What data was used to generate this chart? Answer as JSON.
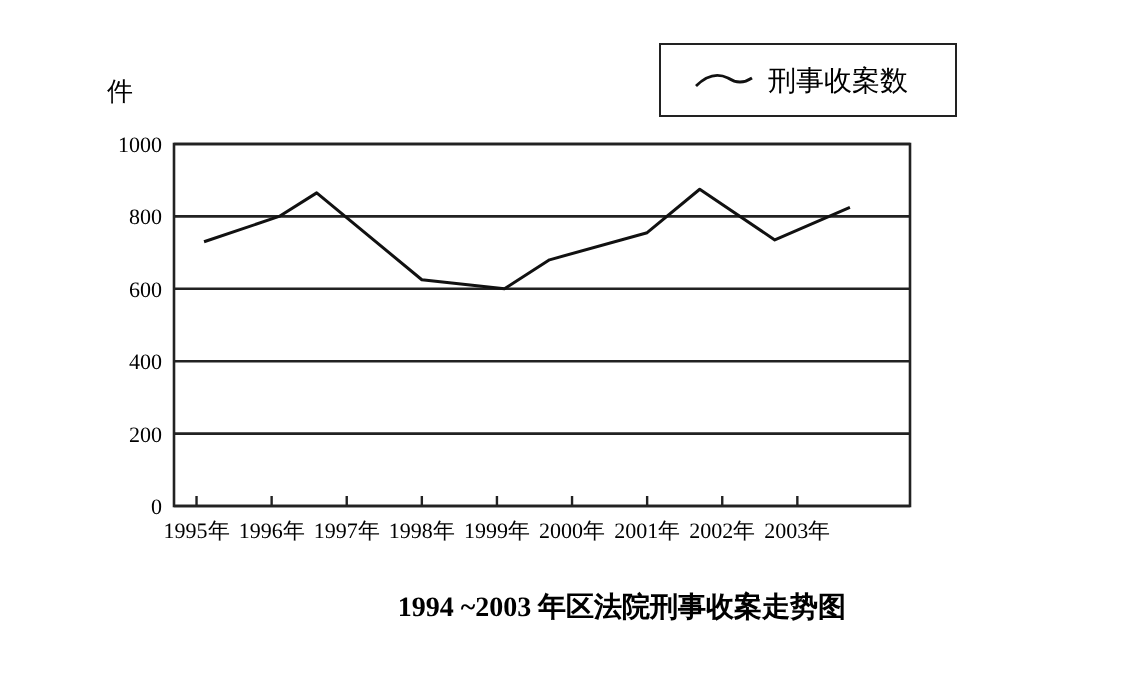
{
  "chart_data": {
    "type": "line",
    "title": "1994 ~2003 年区法院刑事收案走势图",
    "ylabel": "件",
    "x": [
      1995.1,
      1996.1,
      1996.6,
      1998.0,
      1999.1,
      1999.7,
      2001.0,
      2001.7,
      2002.7,
      2003.7
    ],
    "series": [
      {
        "name": "刑事收案数",
        "color": "#111111",
        "values": [
          730,
          800,
          865,
          625,
          600,
          680,
          755,
          875,
          735,
          825
        ]
      }
    ],
    "xlim": [
      1994.7,
      2004.5
    ],
    "xticks": [
      {
        "value": 1995,
        "label": "1995年"
      },
      {
        "value": 1996,
        "label": "1996年"
      },
      {
        "value": 1997,
        "label": "1997年"
      },
      {
        "value": 1998,
        "label": "1998年"
      },
      {
        "value": 1999,
        "label": "1999年"
      },
      {
        "value": 2000,
        "label": "2000年"
      },
      {
        "value": 2001,
        "label": "2001年"
      },
      {
        "value": 2002,
        "label": "2002年"
      },
      {
        "value": 2003,
        "label": "2003年"
      }
    ],
    "ylim": [
      0,
      1000
    ],
    "yticks": [
      0,
      200,
      400,
      600,
      800,
      1000
    ],
    "grid": "y",
    "legend": "top right",
    "marker": "none",
    "line_style": "solid"
  }
}
